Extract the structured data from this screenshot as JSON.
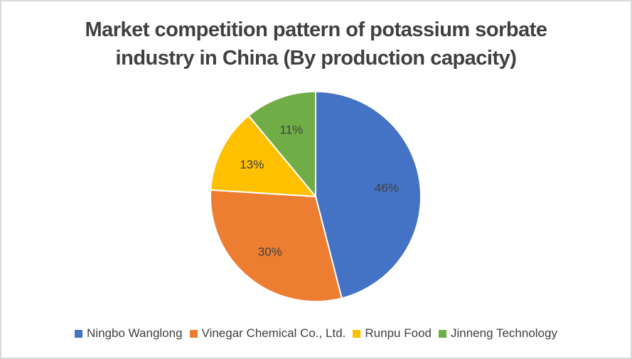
{
  "chart_data": {
    "type": "pie",
    "title": "Market competition pattern of potassium sorbate industry in China (By production capacity)",
    "title_lines": [
      "Market competition pattern of potassium sorbate",
      "industry in China (By production capacity)"
    ],
    "categories": [
      "Ningbo Wanglong",
      "Vinegar Chemical Co., Ltd.",
      "Runpu Food",
      "Jinneng Technology"
    ],
    "values": [
      46,
      30,
      13,
      11
    ],
    "labels": [
      "46%",
      "30%",
      "13%",
      "11%"
    ],
    "colors": [
      "#4472c4",
      "#ed7d31",
      "#ffc000",
      "#70ad47"
    ],
    "legend_position": "bottom"
  }
}
